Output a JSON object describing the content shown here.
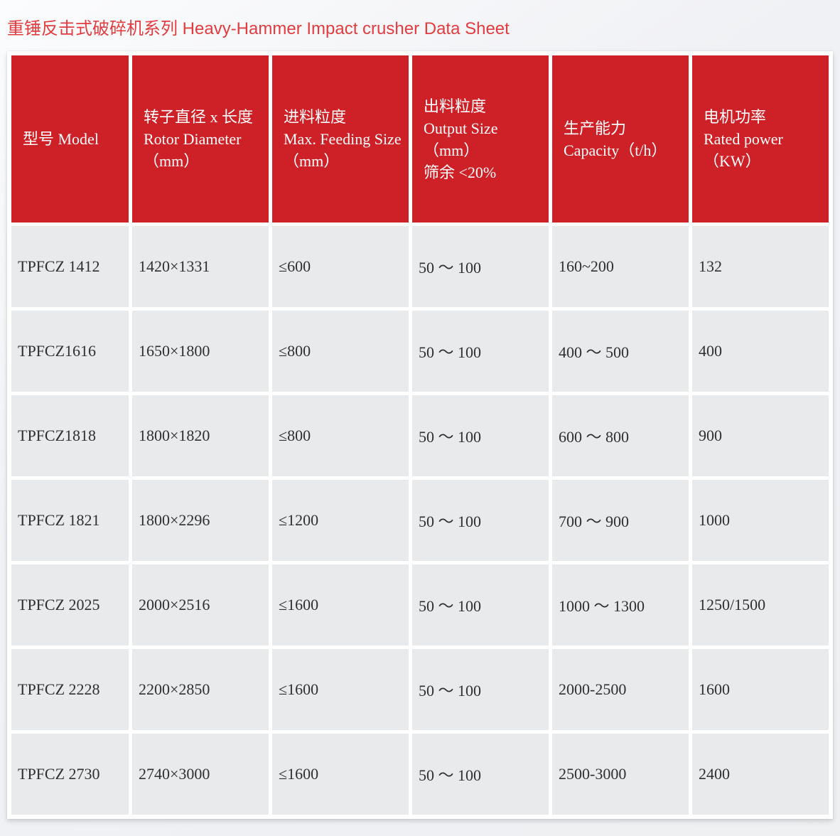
{
  "page_title": "重锤反击式破碎机系列 Heavy-Hammer Impact crusher Data Sheet",
  "colors": {
    "title_text": "#e23c40",
    "header_bg": "#ce2127",
    "header_text": "#ffffff",
    "cell_bg": "#e9eaec",
    "cell_text": "#2f2f31",
    "card_bg": "#ffffff",
    "page_bg": "#eef0f2"
  },
  "table": {
    "columns": [
      "型号 Model",
      "转子直径 x 长度\nRotor Diameter\n（mm）",
      "进料粒度\nMax. Feeding Size\n（mm）",
      "出料粒度\nOutput Size（mm）\n筛余 <20%",
      "生产能力\nCapacity（t/h）",
      "电机功率\nRated power\n（KW）"
    ],
    "rows": [
      [
        "TPFCZ 1412",
        "1420×1331",
        "≤600",
        "50 ～ 100",
        "160~200",
        "132"
      ],
      [
        "TPFCZ1616",
        "1650×1800",
        "≤800",
        "50 ～ 100",
        "400 ～ 500",
        "400"
      ],
      [
        "TPFCZ1818",
        "1800×1820",
        "≤800",
        "50 ～ 100",
        "600 ～ 800",
        "900"
      ],
      [
        "TPFCZ 1821",
        "1800×2296",
        "≤1200",
        "50 ～ 100",
        "700 ～ 900",
        "1000"
      ],
      [
        "TPFCZ 2025",
        "2000×2516",
        "≤1600",
        "50 ～ 100",
        "1000 ～ 1300",
        "1250/1500"
      ],
      [
        "TPFCZ 2228",
        "2200×2850",
        "≤1600",
        "50 ～ 100",
        "2000-2500",
        "1600"
      ],
      [
        "TPFCZ 2730",
        "2740×3000",
        "≤1600",
        "50 ～ 100",
        "2500-3000",
        "2400"
      ]
    ]
  }
}
